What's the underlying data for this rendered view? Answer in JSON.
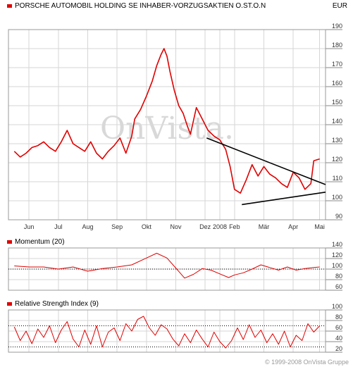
{
  "header": {
    "title": "PORSCHE AUTOMOBIL HOLDING SE INHABER-VORZUGSAKTIEN O.ST.O.N",
    "currency": "EUR"
  },
  "watermark": "OnVista.",
  "copyright": "© 1999-2008 OnVista Gruppe",
  "colors": {
    "series": "#e00000",
    "trendline": "#000000",
    "grid": "#d6d6d6"
  },
  "chart_data": [
    {
      "type": "line",
      "title": "PORSCHE AUTOMOBIL HOLDING SE INHABER-VORZUGSAKTIEN O.ST.O.N",
      "ylabel": "EUR",
      "ylim": [
        90,
        190
      ],
      "yticks": [
        90,
        100,
        110,
        120,
        130,
        140,
        150,
        160,
        170,
        180,
        190
      ],
      "x_labels": [
        "Jun",
        "Jul",
        "Aug",
        "Sep",
        "Okt",
        "Nov",
        "Dez",
        "2008",
        "Feb",
        "Mär",
        "Apr",
        "Mai"
      ],
      "x_label_positions": [
        0.5,
        1.5,
        2.5,
        3.5,
        4.5,
        5.5,
        6.5,
        7.0,
        7.5,
        8.5,
        9.5,
        10.4
      ],
      "x_range": [
        -0.2,
        10.6
      ],
      "series": [
        {
          "x": [
            0.0,
            0.2,
            0.4,
            0.6,
            0.8,
            1.0,
            1.2,
            1.4,
            1.6,
            1.8,
            2.0,
            2.2,
            2.4,
            2.6,
            2.8,
            3.0,
            3.2,
            3.4,
            3.6,
            3.8,
            4.0,
            4.1,
            4.3,
            4.5,
            4.7,
            4.85,
            5.0,
            5.1,
            5.2,
            5.3,
            5.45,
            5.6,
            5.75,
            5.9,
            6.0,
            6.2,
            6.4,
            6.6,
            6.8,
            7.0,
            7.2,
            7.35,
            7.5,
            7.7,
            7.9,
            8.1,
            8.3,
            8.5,
            8.7,
            8.9,
            9.1,
            9.3,
            9.5,
            9.7,
            9.9,
            10.1,
            10.2,
            10.4
          ],
          "values": [
            126,
            123,
            125,
            128,
            129,
            131,
            128,
            126,
            131,
            137,
            130,
            128,
            126,
            131,
            125,
            122,
            126,
            129,
            133,
            125,
            134,
            143,
            148,
            155,
            163,
            171,
            177,
            180,
            176,
            168,
            158,
            150,
            146,
            139,
            135,
            149,
            143,
            137,
            134,
            132,
            127,
            118,
            106,
            104,
            111,
            119,
            113,
            118,
            114,
            112,
            109,
            107,
            115,
            112,
            106,
            109,
            121,
            122
          ]
        }
      ],
      "trendlines": [
        {
          "points": [
            [
              6.55,
              133
            ],
            [
              10.6,
              108.5
            ]
          ]
        },
        {
          "points": [
            [
              7.75,
              98
            ],
            [
              10.6,
              104.5
            ]
          ]
        }
      ]
    },
    {
      "type": "line",
      "title": "Momentum (20)",
      "ylim": [
        60,
        140
      ],
      "yticks": [
        60,
        80,
        100,
        120,
        140
      ],
      "reference_line": 100,
      "x_range": [
        -0.2,
        10.6
      ],
      "series": [
        {
          "x": [
            0.0,
            0.5,
            1.0,
            1.5,
            2.0,
            2.5,
            3.0,
            3.5,
            4.0,
            4.5,
            4.85,
            5.2,
            5.5,
            5.8,
            6.1,
            6.4,
            6.7,
            7.0,
            7.3,
            7.5,
            7.8,
            8.1,
            8.4,
            8.7,
            9.0,
            9.3,
            9.6,
            9.9,
            10.2,
            10.4
          ],
          "values": [
            106,
            104,
            104,
            100,
            104,
            96,
            101,
            104,
            108,
            121,
            130,
            121,
            102,
            83,
            90,
            101,
            98,
            91,
            84,
            89,
            93,
            100,
            108,
            103,
            98,
            104,
            98,
            101,
            103,
            104
          ]
        }
      ]
    },
    {
      "type": "line",
      "title": "Relative Strength Index (9)",
      "ylim": [
        20,
        100
      ],
      "yticks": [
        20,
        40,
        60,
        80,
        100
      ],
      "reference_lines": [
        30,
        70
      ],
      "x_range": [
        -0.2,
        10.6
      ],
      "series": [
        {
          "x": [
            0.0,
            0.2,
            0.4,
            0.6,
            0.8,
            1.0,
            1.2,
            1.4,
            1.6,
            1.8,
            2.0,
            2.2,
            2.4,
            2.6,
            2.8,
            3.0,
            3.2,
            3.4,
            3.6,
            3.8,
            4.0,
            4.2,
            4.4,
            4.6,
            4.8,
            5.0,
            5.2,
            5.4,
            5.6,
            5.8,
            6.0,
            6.2,
            6.4,
            6.6,
            6.8,
            7.0,
            7.2,
            7.4,
            7.6,
            7.8,
            8.0,
            8.2,
            8.4,
            8.6,
            8.8,
            9.0,
            9.2,
            9.4,
            9.6,
            9.8,
            10.0,
            10.2,
            10.4
          ],
          "values": [
            68,
            42,
            60,
            36,
            64,
            48,
            70,
            38,
            62,
            78,
            45,
            30,
            62,
            35,
            70,
            30,
            58,
            66,
            42,
            74,
            60,
            82,
            88,
            66,
            52,
            72,
            64,
            45,
            32,
            55,
            38,
            62,
            45,
            30,
            58,
            40,
            28,
            42,
            66,
            44,
            72,
            48,
            62,
            38,
            55,
            35,
            60,
            30,
            52,
            42,
            74,
            58,
            70
          ]
        }
      ]
    }
  ]
}
